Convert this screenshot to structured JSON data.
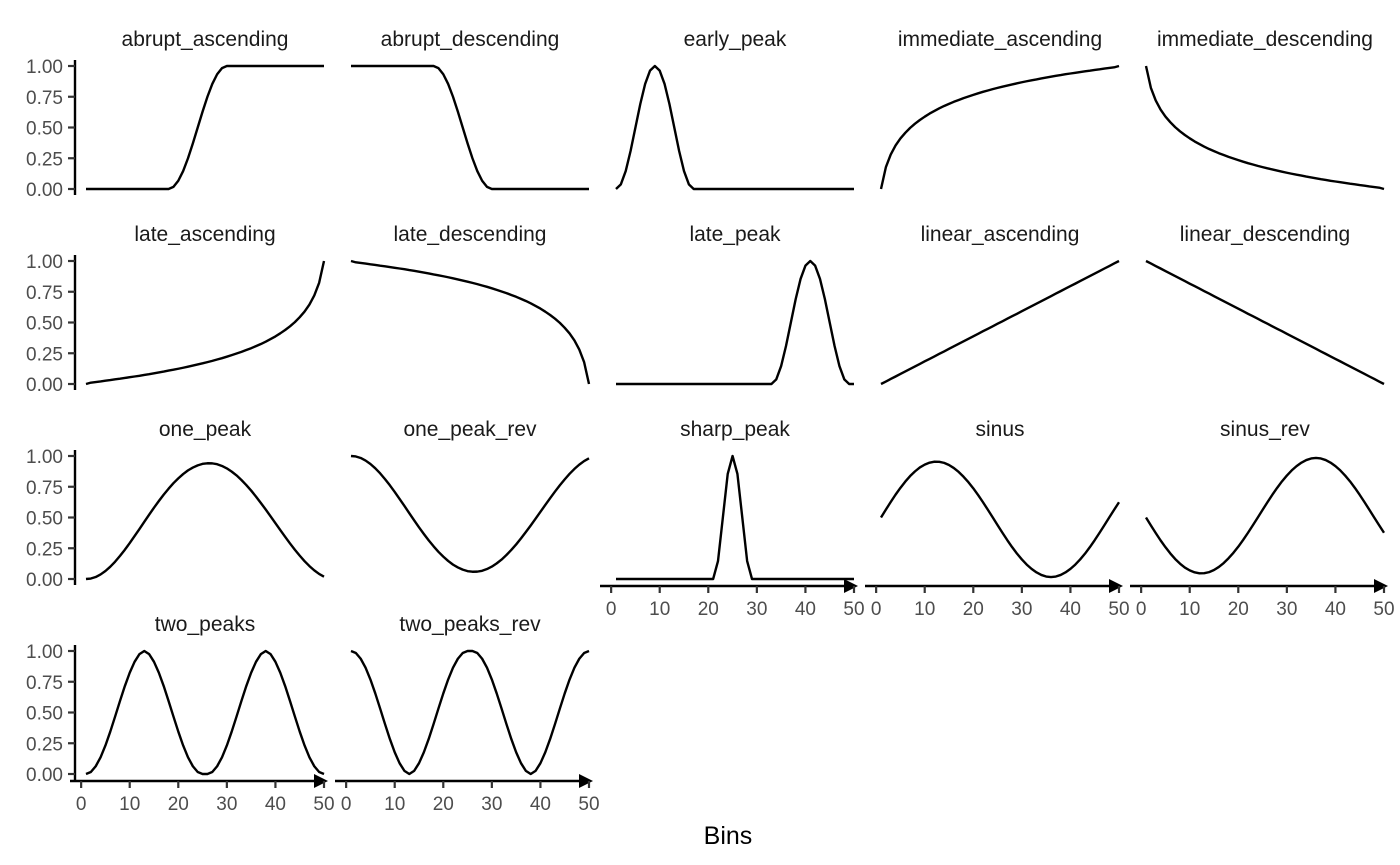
{
  "chart_data": {
    "type": "line",
    "layout": "facet_grid",
    "xlabel": "Bins",
    "ylabel": "",
    "xlim": [
      1,
      50
    ],
    "ylim": [
      0,
      1
    ],
    "x_ticks": [
      "0",
      "10",
      "20",
      "30",
      "40",
      "50"
    ],
    "y_ticks": [
      "0.00",
      "0.25",
      "0.50",
      "0.75",
      "1.00"
    ],
    "grid": false,
    "x": [
      1,
      2,
      3,
      4,
      5,
      6,
      7,
      8,
      9,
      10,
      11,
      12,
      13,
      14,
      15,
      16,
      17,
      18,
      19,
      20,
      21,
      22,
      23,
      24,
      25,
      26,
      27,
      28,
      29,
      30,
      31,
      32,
      33,
      34,
      35,
      36,
      37,
      38,
      39,
      40,
      41,
      42,
      43,
      44,
      45,
      46,
      47,
      48,
      49,
      50
    ],
    "panels": [
      {
        "title": "abrupt_ascending",
        "values": [
          0,
          0,
          0,
          0,
          0,
          0,
          0,
          0,
          0,
          0,
          0,
          0,
          0,
          0,
          0,
          0,
          0,
          0,
          0.017,
          0.067,
          0.146,
          0.25,
          0.371,
          0.5,
          0.629,
          0.75,
          0.854,
          0.933,
          0.983,
          1,
          1,
          1,
          1,
          1,
          1,
          1,
          1,
          1,
          1,
          1,
          1,
          1,
          1,
          1,
          1,
          1,
          1,
          1,
          1,
          1
        ]
      },
      {
        "title": "abrupt_descending",
        "values": [
          1,
          1,
          1,
          1,
          1,
          1,
          1,
          1,
          1,
          1,
          1,
          1,
          1,
          1,
          1,
          1,
          1,
          1,
          0.983,
          0.933,
          0.854,
          0.75,
          0.629,
          0.5,
          0.371,
          0.25,
          0.146,
          0.067,
          0.017,
          0,
          0,
          0,
          0,
          0,
          0,
          0,
          0,
          0,
          0,
          0,
          0,
          0,
          0,
          0,
          0,
          0,
          0,
          0,
          0,
          0
        ]
      },
      {
        "title": "early_peak",
        "values": [
          0,
          0.038,
          0.146,
          0.309,
          0.5,
          0.691,
          0.854,
          0.962,
          1,
          0.962,
          0.854,
          0.691,
          0.5,
          0.309,
          0.146,
          0.038,
          0,
          0,
          0,
          0,
          0,
          0,
          0,
          0,
          0,
          0,
          0,
          0,
          0,
          0,
          0,
          0,
          0,
          0,
          0,
          0,
          0,
          0,
          0,
          0,
          0,
          0,
          0,
          0,
          0,
          0,
          0,
          0,
          0,
          0
        ]
      },
      {
        "title": "immediate_ascending",
        "values": [
          0,
          0.177,
          0.28,
          0.354,
          0.411,
          0.457,
          0.497,
          0.531,
          0.561,
          0.588,
          0.613,
          0.635,
          0.656,
          0.675,
          0.692,
          0.709,
          0.724,
          0.739,
          0.752,
          0.765,
          0.778,
          0.79,
          0.801,
          0.812,
          0.822,
          0.832,
          0.841,
          0.85,
          0.859,
          0.868,
          0.876,
          0.884,
          0.891,
          0.899,
          0.906,
          0.913,
          0.92,
          0.926,
          0.933,
          0.939,
          0.945,
          0.951,
          0.957,
          0.962,
          0.968,
          0.973,
          0.979,
          0.984,
          0.989,
          1
        ]
      },
      {
        "title": "immediate_descending",
        "values": [
          1,
          0.823,
          0.72,
          0.646,
          0.589,
          0.543,
          0.503,
          0.469,
          0.439,
          0.412,
          0.387,
          0.365,
          0.344,
          0.325,
          0.308,
          0.291,
          0.276,
          0.261,
          0.248,
          0.235,
          0.222,
          0.21,
          0.199,
          0.188,
          0.178,
          0.168,
          0.159,
          0.15,
          0.141,
          0.132,
          0.124,
          0.116,
          0.109,
          0.101,
          0.094,
          0.087,
          0.08,
          0.074,
          0.067,
          0.061,
          0.055,
          0.049,
          0.043,
          0.038,
          0.032,
          0.027,
          0.021,
          0.016,
          0.011,
          0
        ]
      },
      {
        "title": "late_ascending",
        "values": [
          0,
          0.011,
          0.016,
          0.021,
          0.027,
          0.032,
          0.038,
          0.043,
          0.049,
          0.055,
          0.061,
          0.067,
          0.074,
          0.08,
          0.087,
          0.094,
          0.101,
          0.109,
          0.116,
          0.124,
          0.132,
          0.141,
          0.15,
          0.159,
          0.168,
          0.178,
          0.188,
          0.199,
          0.21,
          0.222,
          0.235,
          0.248,
          0.261,
          0.276,
          0.291,
          0.308,
          0.325,
          0.344,
          0.365,
          0.387,
          0.412,
          0.439,
          0.469,
          0.503,
          0.543,
          0.589,
          0.646,
          0.72,
          0.823,
          1
        ]
      },
      {
        "title": "late_descending",
        "values": [
          1,
          0.989,
          0.984,
          0.979,
          0.973,
          0.968,
          0.962,
          0.957,
          0.951,
          0.945,
          0.939,
          0.933,
          0.926,
          0.92,
          0.913,
          0.906,
          0.899,
          0.891,
          0.884,
          0.876,
          0.868,
          0.859,
          0.85,
          0.841,
          0.832,
          0.822,
          0.812,
          0.801,
          0.79,
          0.778,
          0.765,
          0.752,
          0.739,
          0.724,
          0.709,
          0.692,
          0.675,
          0.656,
          0.635,
          0.613,
          0.588,
          0.561,
          0.531,
          0.497,
          0.457,
          0.411,
          0.354,
          0.28,
          0.177,
          0
        ]
      },
      {
        "title": "late_peak",
        "values": [
          0,
          0,
          0,
          0,
          0,
          0,
          0,
          0,
          0,
          0,
          0,
          0,
          0,
          0,
          0,
          0,
          0,
          0,
          0,
          0,
          0,
          0,
          0,
          0,
          0,
          0,
          0,
          0,
          0,
          0,
          0,
          0,
          0,
          0.038,
          0.146,
          0.309,
          0.5,
          0.691,
          0.854,
          0.962,
          1,
          0.962,
          0.854,
          0.691,
          0.5,
          0.309,
          0.146,
          0.038,
          0,
          0
        ]
      },
      {
        "title": "linear_ascending",
        "values": [
          0,
          0.02,
          0.041,
          0.061,
          0.082,
          0.102,
          0.122,
          0.143,
          0.163,
          0.184,
          0.204,
          0.224,
          0.245,
          0.265,
          0.286,
          0.306,
          0.327,
          0.347,
          0.367,
          0.388,
          0.408,
          0.429,
          0.449,
          0.469,
          0.49,
          0.51,
          0.531,
          0.551,
          0.571,
          0.592,
          0.612,
          0.633,
          0.653,
          0.673,
          0.694,
          0.714,
          0.735,
          0.755,
          0.776,
          0.796,
          0.816,
          0.837,
          0.857,
          0.878,
          0.898,
          0.918,
          0.939,
          0.959,
          0.98,
          1
        ]
      },
      {
        "title": "linear_descending",
        "values": [
          1,
          0.98,
          0.959,
          0.939,
          0.918,
          0.898,
          0.878,
          0.857,
          0.837,
          0.816,
          0.796,
          0.776,
          0.755,
          0.735,
          0.714,
          0.694,
          0.673,
          0.653,
          0.633,
          0.612,
          0.592,
          0.571,
          0.551,
          0.531,
          0.51,
          0.49,
          0.469,
          0.449,
          0.429,
          0.408,
          0.388,
          0.367,
          0.347,
          0.327,
          0.306,
          0.286,
          0.265,
          0.245,
          0.224,
          0.204,
          0.184,
          0.163,
          0.143,
          0.122,
          0.102,
          0.082,
          0.061,
          0.041,
          0.02,
          0
        ]
      },
      {
        "title": "one_peak",
        "values": [
          0,
          0.004,
          0.016,
          0.037,
          0.065,
          0.1,
          0.141,
          0.188,
          0.238,
          0.292,
          0.349,
          0.406,
          0.465,
          0.523,
          0.58,
          0.634,
          0.686,
          0.734,
          0.779,
          0.818,
          0.853,
          0.883,
          0.906,
          0.924,
          0.936,
          0.941,
          0.94,
          0.933,
          0.919,
          0.899,
          0.873,
          0.842,
          0.805,
          0.764,
          0.719,
          0.67,
          0.618,
          0.565,
          0.51,
          0.454,
          0.398,
          0.343,
          0.289,
          0.238,
          0.19,
          0.145,
          0.105,
          0.07,
          0.041,
          0.019
        ]
      },
      {
        "title": "one_peak_rev",
        "values": [
          1,
          0.996,
          0.984,
          0.963,
          0.935,
          0.9,
          0.859,
          0.812,
          0.762,
          0.708,
          0.651,
          0.594,
          0.535,
          0.477,
          0.42,
          0.366,
          0.314,
          0.266,
          0.221,
          0.182,
          0.147,
          0.117,
          0.094,
          0.076,
          0.064,
          0.059,
          0.06,
          0.067,
          0.081,
          0.101,
          0.127,
          0.158,
          0.195,
          0.236,
          0.281,
          0.33,
          0.382,
          0.435,
          0.49,
          0.546,
          0.602,
          0.657,
          0.711,
          0.762,
          0.81,
          0.855,
          0.895,
          0.93,
          0.959,
          0.981
        ]
      },
      {
        "title": "sharp_peak",
        "values": [
          0,
          0,
          0,
          0,
          0,
          0,
          0,
          0,
          0,
          0,
          0,
          0,
          0,
          0,
          0,
          0,
          0,
          0,
          0,
          0,
          0,
          0.146,
          0.5,
          0.854,
          1,
          0.854,
          0.5,
          0.146,
          0,
          0,
          0,
          0,
          0,
          0,
          0,
          0,
          0,
          0,
          0,
          0,
          0,
          0,
          0,
          0,
          0,
          0,
          0,
          0,
          0,
          0
        ]
      },
      {
        "title": "sinus",
        "values": [
          0.5,
          0.564,
          0.626,
          0.686,
          0.741,
          0.792,
          0.837,
          0.875,
          0.907,
          0.93,
          0.946,
          0.954,
          0.953,
          0.944,
          0.927,
          0.902,
          0.87,
          0.831,
          0.787,
          0.737,
          0.682,
          0.624,
          0.563,
          0.501,
          0.438,
          0.376,
          0.316,
          0.259,
          0.206,
          0.159,
          0.117,
          0.082,
          0.054,
          0.033,
          0.02,
          0.016,
          0.02,
          0.033,
          0.054,
          0.082,
          0.117,
          0.159,
          0.206,
          0.259,
          0.316,
          0.376,
          0.438,
          0.501,
          0.563,
          0.624
        ]
      },
      {
        "title": "sinus_rev",
        "values": [
          0.5,
          0.436,
          0.374,
          0.314,
          0.259,
          0.208,
          0.163,
          0.125,
          0.093,
          0.07,
          0.054,
          0.046,
          0.047,
          0.056,
          0.073,
          0.098,
          0.13,
          0.169,
          0.213,
          0.263,
          0.318,
          0.376,
          0.437,
          0.499,
          0.562,
          0.624,
          0.684,
          0.741,
          0.794,
          0.841,
          0.883,
          0.918,
          0.946,
          0.967,
          0.98,
          0.984,
          0.98,
          0.967,
          0.946,
          0.918,
          0.883,
          0.841,
          0.794,
          0.741,
          0.684,
          0.624,
          0.562,
          0.499,
          0.437,
          0.376
        ]
      },
      {
        "title": "two_peaks",
        "values": [
          0,
          0.016,
          0.063,
          0.136,
          0.232,
          0.345,
          0.468,
          0.594,
          0.715,
          0.823,
          0.912,
          0.975,
          1,
          0.975,
          0.912,
          0.823,
          0.715,
          0.594,
          0.468,
          0.345,
          0.232,
          0.136,
          0.063,
          0.016,
          0,
          0,
          0.016,
          0.063,
          0.136,
          0.232,
          0.345,
          0.468,
          0.594,
          0.715,
          0.823,
          0.912,
          0.975,
          1,
          0.975,
          0.912,
          0.823,
          0.715,
          0.594,
          0.468,
          0.345,
          0.232,
          0.136,
          0.063,
          0.016,
          0
        ]
      },
      {
        "title": "two_peaks_rev",
        "values": [
          1,
          0.984,
          0.937,
          0.864,
          0.768,
          0.655,
          0.532,
          0.406,
          0.285,
          0.177,
          0.088,
          0.025,
          0,
          0.025,
          0.088,
          0.177,
          0.285,
          0.406,
          0.532,
          0.655,
          0.768,
          0.864,
          0.937,
          0.984,
          1,
          1,
          0.984,
          0.937,
          0.864,
          0.768,
          0.655,
          0.532,
          0.406,
          0.285,
          0.177,
          0.088,
          0.025,
          0,
          0.025,
          0.088,
          0.177,
          0.285,
          0.406,
          0.532,
          0.655,
          0.768,
          0.864,
          0.937,
          0.984,
          1
        ]
      }
    ]
  }
}
